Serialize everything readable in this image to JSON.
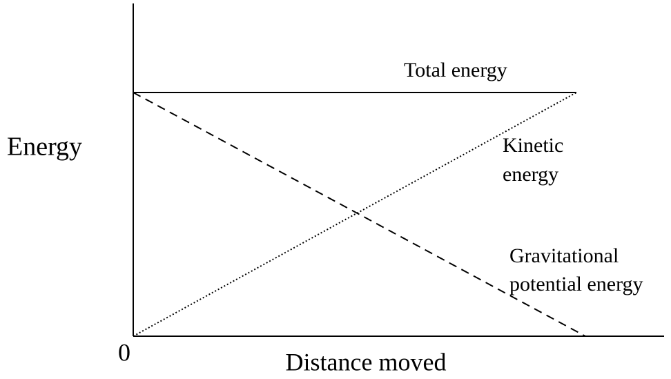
{
  "axes": {
    "y_label": "Energy",
    "x_label": "Distance moved",
    "origin_label": "0"
  },
  "curves": [
    {
      "label": [
        "Total energy"
      ]
    },
    {
      "label": [
        "Kinetic",
        "energy"
      ]
    },
    {
      "label": [
        "Gravitational",
        "potential energy"
      ]
    }
  ]
}
